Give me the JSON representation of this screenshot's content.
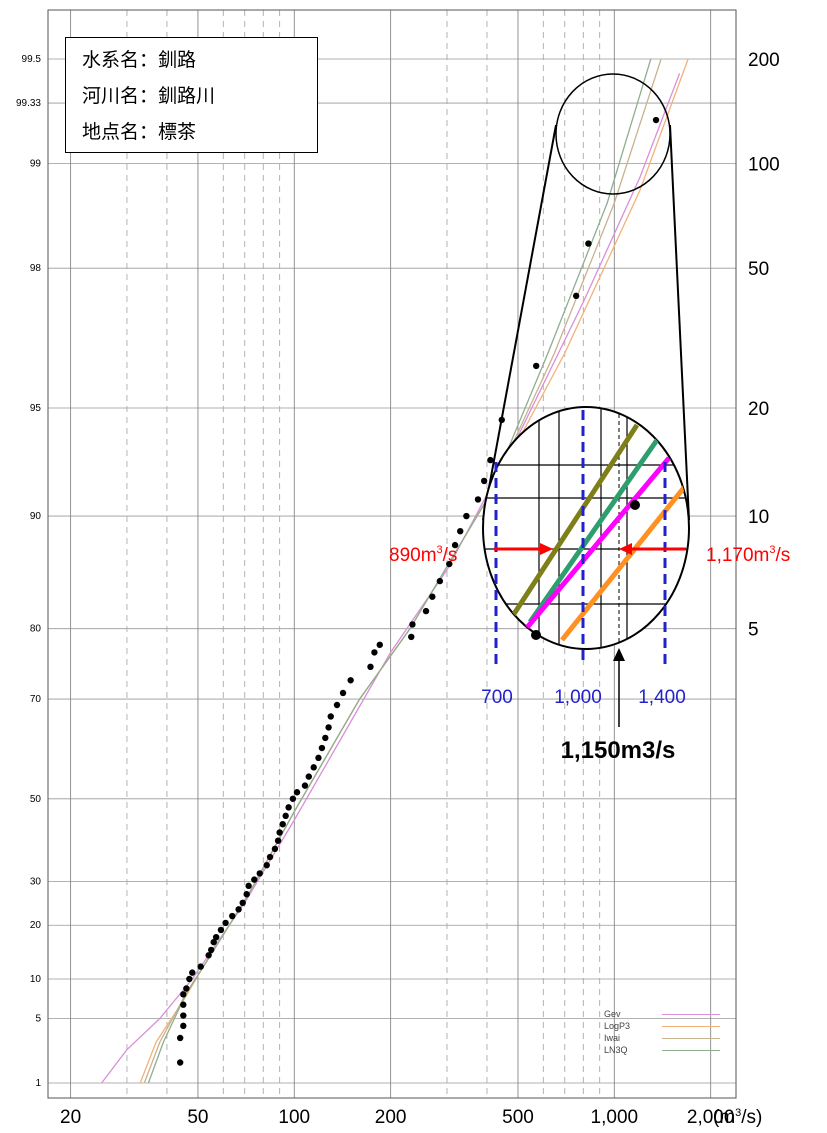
{
  "info_box": {
    "water_system": "水系名：釧路",
    "river": "河川名：釧路川",
    "point": "地点名：標茶"
  },
  "chart_data": {
    "type": "scatter",
    "title": "",
    "xlabel": "(m3/s)",
    "ylabel": "",
    "x_scale": "log",
    "xlim": [
      17,
      2400
    ],
    "x_ticks": [
      20,
      50,
      100,
      200,
      500,
      1000,
      2000
    ],
    "x_tick_labels": [
      "20",
      "50",
      "100",
      "200",
      "500",
      "1,000",
      "2,000"
    ],
    "x_unit_label": "(m3/s)",
    "y_scale": "gumbel-probability",
    "y_left_ticks": [
      1,
      5,
      10,
      20,
      30,
      50,
      70,
      80,
      90,
      95,
      98,
      99,
      99.33,
      99.5
    ],
    "y_left_tick_labels": [
      "1",
      "5",
      "10",
      "20",
      "30",
      "50",
      "70",
      "80",
      "90",
      "95",
      "98",
      "99",
      "99.33",
      "99.5"
    ],
    "y_right_ticks": [
      5,
      10,
      20,
      50,
      100,
      200
    ],
    "y_right_tick_labels": [
      "5",
      "10",
      "20",
      "50",
      "100",
      "200"
    ],
    "points": [
      [
        44,
        1.8
      ],
      [
        44,
        3.3
      ],
      [
        45,
        4.3
      ],
      [
        45,
        5.3
      ],
      [
        45,
        6.5
      ],
      [
        45,
        7.8
      ],
      [
        46,
        8.6
      ],
      [
        47,
        10
      ],
      [
        48,
        11
      ],
      [
        51,
        12
      ],
      [
        54,
        14
      ],
      [
        55,
        15
      ],
      [
        56,
        16.5
      ],
      [
        57,
        17.5
      ],
      [
        59,
        19
      ],
      [
        61,
        20.5
      ],
      [
        64,
        22
      ],
      [
        67,
        23.5
      ],
      [
        69,
        25
      ],
      [
        71,
        27
      ],
      [
        72,
        29
      ],
      [
        75,
        30.5
      ],
      [
        78,
        32
      ],
      [
        82,
        34
      ],
      [
        84,
        36
      ],
      [
        87,
        38
      ],
      [
        89,
        40
      ],
      [
        90,
        42
      ],
      [
        92,
        44
      ],
      [
        94,
        46
      ],
      [
        96,
        48
      ],
      [
        99,
        50
      ],
      [
        102,
        51.5
      ],
      [
        108,
        53
      ],
      [
        111,
        55
      ],
      [
        115,
        57
      ],
      [
        119,
        59
      ],
      [
        122,
        61
      ],
      [
        125,
        63
      ],
      [
        128,
        65
      ],
      [
        130,
        67
      ],
      [
        136,
        69
      ],
      [
        142,
        71
      ],
      [
        150,
        73
      ],
      [
        173,
        75
      ],
      [
        178,
        77
      ],
      [
        185,
        78
      ],
      [
        232,
        79
      ],
      [
        234,
        80.5
      ],
      [
        258,
        82
      ],
      [
        270,
        83.5
      ],
      [
        285,
        85
      ],
      [
        305,
        86.5
      ],
      [
        318,
        88
      ],
      [
        330,
        89
      ],
      [
        345,
        90
      ],
      [
        375,
        91
      ],
      [
        392,
        92
      ],
      [
        410,
        93
      ],
      [
        445,
        94.6
      ],
      [
        570,
        96.2
      ],
      [
        760,
        97.6
      ],
      [
        830,
        98.3
      ],
      [
        1350,
        99.25
      ]
    ],
    "series": [
      {
        "name": "Gev",
        "color": "#d98fd9"
      },
      {
        "name": "LogP3",
        "color": "#f2b27a"
      },
      {
        "name": "Iwai",
        "color": "#c9b28f"
      },
      {
        "name": "LN3Q",
        "color": "#8fae8f"
      }
    ],
    "legend_position": "bottom-right",
    "grid": true
  },
  "inset": {
    "left_value_label": "890m3/s",
    "right_value_label": "1,170m3/s",
    "axis_labels": [
      "700",
      "1,000",
      "1,400"
    ],
    "center_label": "1,150m3/s",
    "left_value_color": "#ff0000",
    "right_value_color": "#ff0000",
    "axis_label_color": "#2222cc"
  }
}
